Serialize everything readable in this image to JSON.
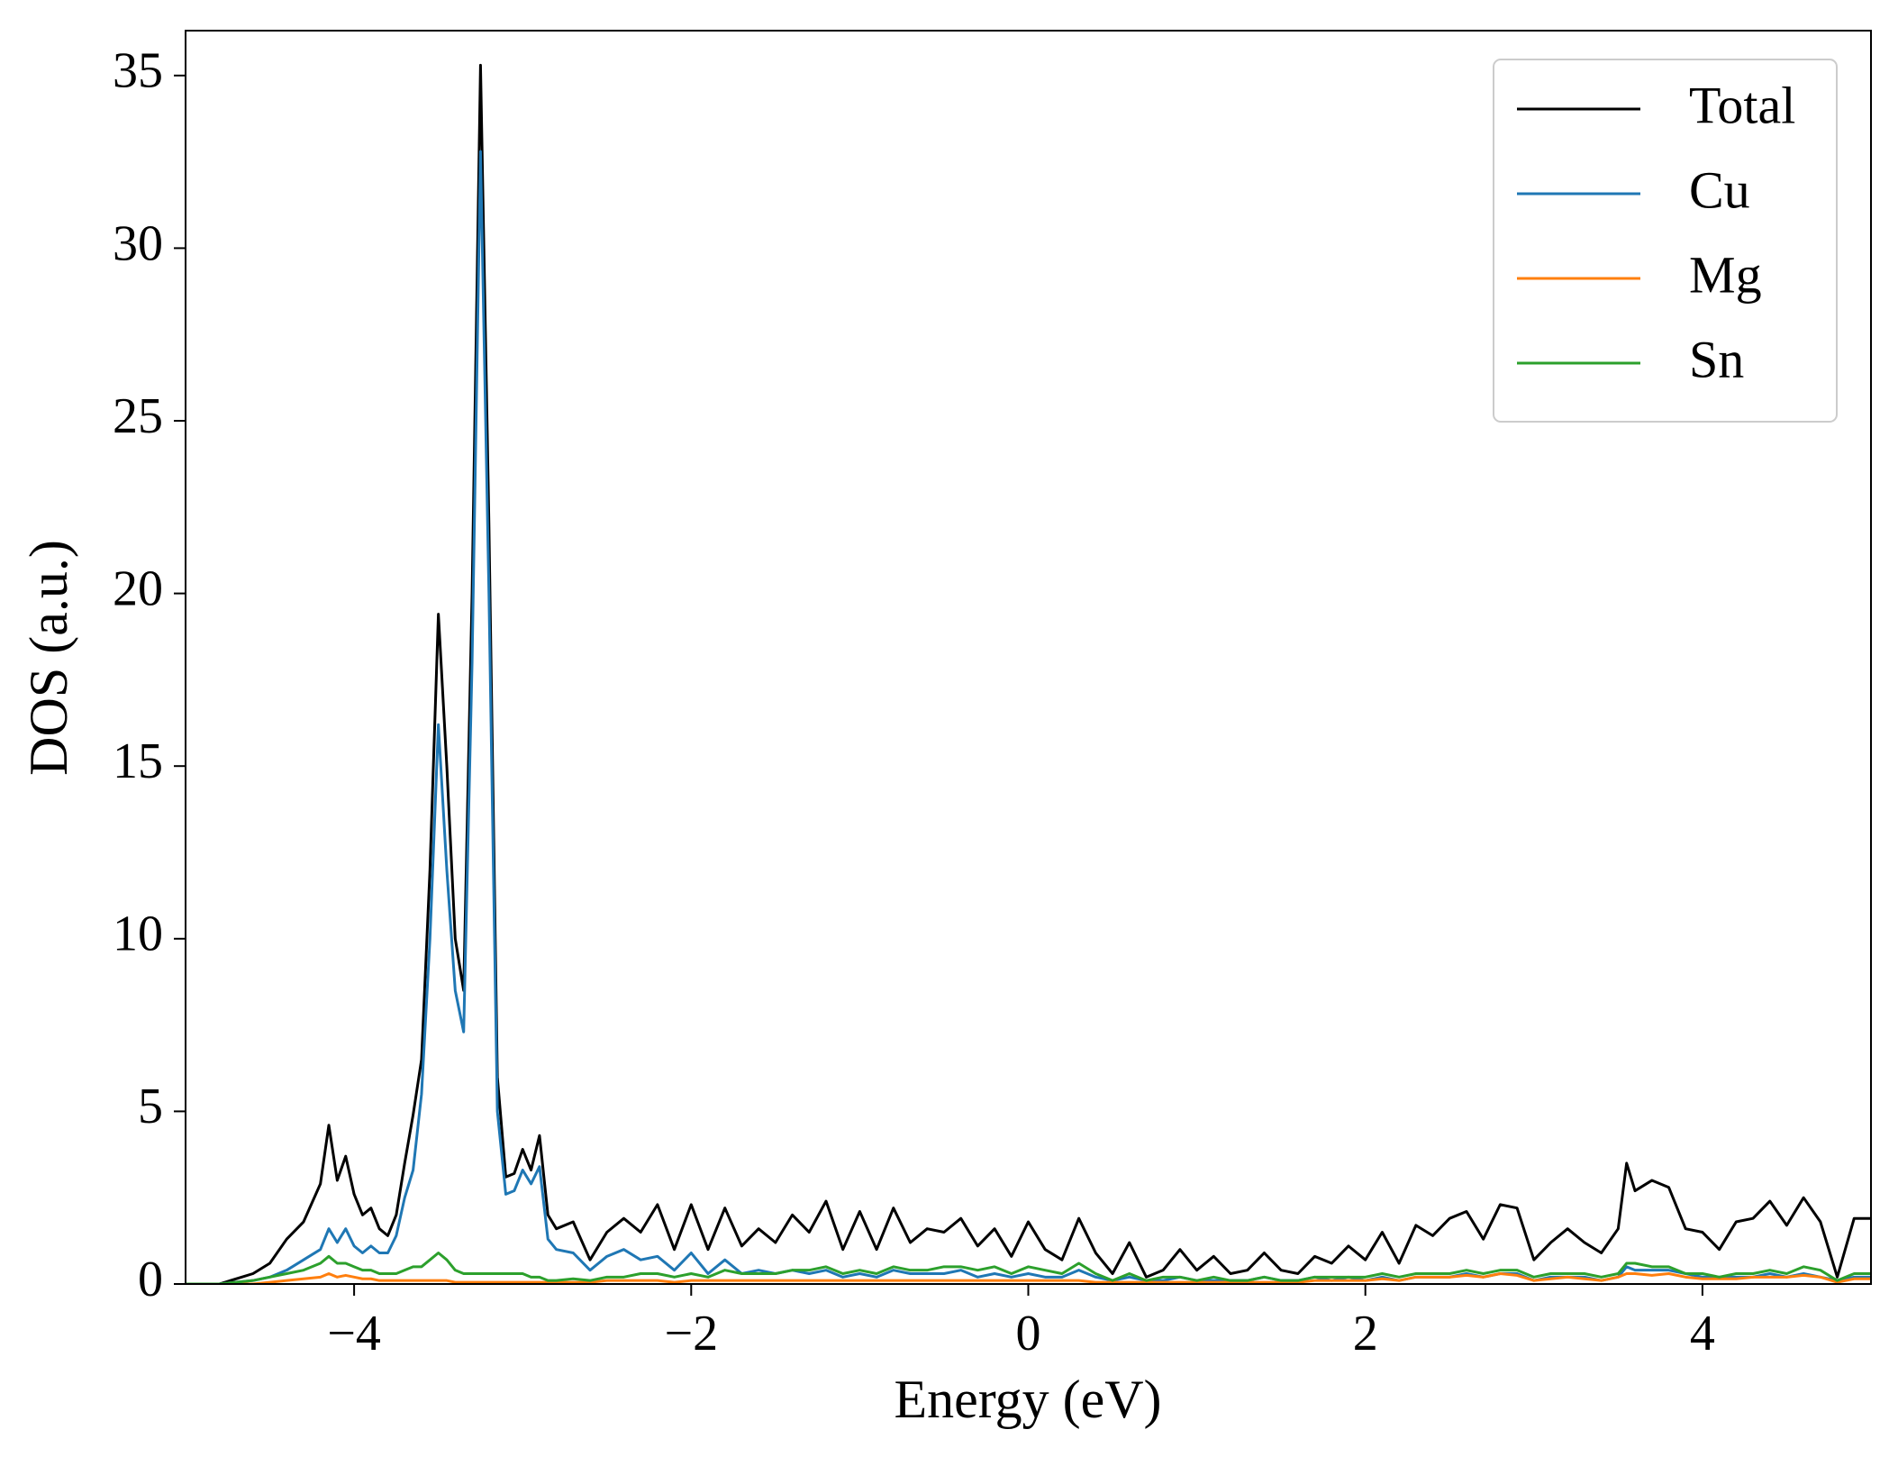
{
  "chart_data": {
    "type": "line",
    "x_label": "Energy (eV)",
    "y_label": "DOS (a.u.)",
    "xlim": [
      -5,
      5
    ],
    "ylim": [
      0,
      36.3
    ],
    "xticks": [
      {
        "value": -4,
        "label": "−4"
      },
      {
        "value": -2,
        "label": "−2"
      },
      0,
      2,
      4
    ],
    "yticks": [
      0,
      5,
      10,
      15,
      20,
      25,
      30,
      35
    ],
    "legend": "upper right",
    "grid": false,
    "x": [
      -5.0,
      -4.8,
      -4.6,
      -4.5,
      -4.4,
      -4.3,
      -4.2,
      -4.15,
      -4.1,
      -4.05,
      -4.0,
      -3.95,
      -3.9,
      -3.85,
      -3.8,
      -3.75,
      -3.7,
      -3.65,
      -3.6,
      -3.55,
      -3.5,
      -3.45,
      -3.4,
      -3.35,
      -3.3,
      -3.25,
      -3.2,
      -3.15,
      -3.1,
      -3.05,
      -3.0,
      -2.95,
      -2.9,
      -2.85,
      -2.8,
      -2.7,
      -2.6,
      -2.5,
      -2.4,
      -2.3,
      -2.2,
      -2.1,
      -2.0,
      -1.9,
      -1.8,
      -1.7,
      -1.6,
      -1.5,
      -1.4,
      -1.3,
      -1.2,
      -1.1,
      -1.0,
      -0.9,
      -0.8,
      -0.7,
      -0.6,
      -0.5,
      -0.4,
      -0.3,
      -0.2,
      -0.1,
      0,
      0.1,
      0.2,
      0.3,
      0.4,
      0.5,
      0.6,
      0.7,
      0.8,
      0.9,
      1.0,
      1.1,
      1.2,
      1.3,
      1.4,
      1.5,
      1.6,
      1.7,
      1.8,
      1.9,
      2.0,
      2.1,
      2.2,
      2.3,
      2.4,
      2.5,
      2.6,
      2.7,
      2.8,
      2.9,
      3.0,
      3.1,
      3.2,
      3.3,
      3.4,
      3.5,
      3.55,
      3.6,
      3.7,
      3.8,
      3.9,
      4.0,
      4.1,
      4.2,
      4.3,
      4.4,
      4.5,
      4.6,
      4.7,
      4.8,
      4.9,
      5.0
    ],
    "series": [
      {
        "name": "Total",
        "color": "#000000",
        "values": [
          0,
          0,
          0.3,
          0.6,
          1.3,
          1.8,
          2.9,
          4.6,
          3.0,
          3.7,
          2.6,
          2.0,
          2.2,
          1.6,
          1.4,
          2.0,
          3.5,
          4.9,
          6.5,
          12,
          19.4,
          15,
          10,
          8.5,
          20,
          35.3,
          22,
          6,
          3.1,
          3.2,
          3.9,
          3.3,
          4.3,
          2.0,
          1.6,
          1.8,
          0.7,
          1.5,
          1.9,
          1.5,
          2.3,
          1.0,
          2.3,
          1.0,
          2.2,
          1.1,
          1.6,
          1.2,
          2.0,
          1.5,
          2.4,
          1.0,
          2.1,
          1.0,
          2.2,
          1.2,
          1.6,
          1.5,
          1.9,
          1.1,
          1.6,
          0.8,
          1.8,
          1.0,
          0.7,
          1.9,
          0.9,
          0.3,
          1.2,
          0.2,
          0.4,
          1.0,
          0.4,
          0.8,
          0.3,
          0.4,
          0.9,
          0.4,
          0.3,
          0.8,
          0.6,
          1.1,
          0.7,
          1.5,
          0.6,
          1.7,
          1.4,
          1.9,
          2.1,
          1.3,
          2.3,
          2.2,
          0.7,
          1.2,
          1.6,
          1.2,
          0.9,
          1.6,
          3.5,
          2.7,
          3.0,
          2.8,
          1.6,
          1.5,
          1.0,
          1.8,
          1.9,
          2.4,
          1.7,
          2.5,
          1.8,
          0.2,
          1.9,
          1.9
        ]
      },
      {
        "name": "Cu",
        "color": "#1f77b4",
        "values": [
          0,
          0,
          0.1,
          0.2,
          0.4,
          0.7,
          1.0,
          1.6,
          1.2,
          1.6,
          1.1,
          0.9,
          1.1,
          0.9,
          0.9,
          1.4,
          2.5,
          3.3,
          5.5,
          10,
          16.2,
          12,
          8.5,
          7.3,
          18,
          32.8,
          20,
          5,
          2.6,
          2.7,
          3.3,
          2.9,
          3.4,
          1.3,
          1.0,
          0.9,
          0.4,
          0.8,
          1.0,
          0.7,
          0.8,
          0.4,
          0.9,
          0.3,
          0.7,
          0.3,
          0.4,
          0.3,
          0.4,
          0.3,
          0.4,
          0.2,
          0.3,
          0.2,
          0.4,
          0.3,
          0.3,
          0.3,
          0.4,
          0.2,
          0.3,
          0.2,
          0.3,
          0.2,
          0.2,
          0.4,
          0.2,
          0.1,
          0.2,
          0.1,
          0.1,
          0.2,
          0.1,
          0.1,
          0.1,
          0.1,
          0.2,
          0.1,
          0.1,
          0.2,
          0.1,
          0.2,
          0.1,
          0.2,
          0.1,
          0.2,
          0.2,
          0.2,
          0.3,
          0.2,
          0.3,
          0.3,
          0.1,
          0.2,
          0.2,
          0.2,
          0.1,
          0.2,
          0.5,
          0.4,
          0.4,
          0.4,
          0.3,
          0.2,
          0.2,
          0.2,
          0.2,
          0.3,
          0.2,
          0.3,
          0.2,
          0.1,
          0.2,
          0.2
        ]
      },
      {
        "name": "Mg",
        "color": "#ff7f0e",
        "values": [
          0,
          0,
          0,
          0.05,
          0.1,
          0.15,
          0.2,
          0.3,
          0.2,
          0.25,
          0.2,
          0.15,
          0.15,
          0.1,
          0.1,
          0.1,
          0.1,
          0.1,
          0.1,
          0.1,
          0.1,
          0.1,
          0.05,
          0.05,
          0.05,
          0.05,
          0.05,
          0.05,
          0.05,
          0.05,
          0.05,
          0.05,
          0.05,
          0.05,
          0.05,
          0.05,
          0.05,
          0.1,
          0.1,
          0.1,
          0.1,
          0.05,
          0.1,
          0.1,
          0.1,
          0.1,
          0.1,
          0.1,
          0.1,
          0.1,
          0.1,
          0.1,
          0.1,
          0.1,
          0.1,
          0.1,
          0.1,
          0.1,
          0.1,
          0.1,
          0.1,
          0.1,
          0.1,
          0.1,
          0.1,
          0.1,
          0.05,
          0.05,
          0.05,
          0.05,
          0.05,
          0.05,
          0.05,
          0.05,
          0.05,
          0.05,
          0.05,
          0.05,
          0.05,
          0.1,
          0.1,
          0.1,
          0.1,
          0.15,
          0.1,
          0.2,
          0.2,
          0.2,
          0.25,
          0.2,
          0.3,
          0.25,
          0.1,
          0.15,
          0.2,
          0.15,
          0.1,
          0.2,
          0.3,
          0.3,
          0.25,
          0.3,
          0.2,
          0.15,
          0.15,
          0.15,
          0.2,
          0.2,
          0.2,
          0.25,
          0.2,
          0.05,
          0.15,
          0.15
        ]
      },
      {
        "name": "Sn",
        "color": "#2ca02c",
        "values": [
          0,
          0,
          0.1,
          0.2,
          0.3,
          0.4,
          0.6,
          0.8,
          0.6,
          0.6,
          0.5,
          0.4,
          0.4,
          0.3,
          0.3,
          0.3,
          0.4,
          0.5,
          0.5,
          0.7,
          0.9,
          0.7,
          0.4,
          0.3,
          0.3,
          0.3,
          0.3,
          0.3,
          0.3,
          0.3,
          0.3,
          0.2,
          0.2,
          0.1,
          0.1,
          0.15,
          0.1,
          0.2,
          0.2,
          0.3,
          0.3,
          0.2,
          0.3,
          0.2,
          0.4,
          0.3,
          0.3,
          0.3,
          0.4,
          0.4,
          0.5,
          0.3,
          0.4,
          0.3,
          0.5,
          0.4,
          0.4,
          0.5,
          0.5,
          0.4,
          0.5,
          0.3,
          0.5,
          0.4,
          0.3,
          0.6,
          0.3,
          0.1,
          0.3,
          0.1,
          0.2,
          0.2,
          0.1,
          0.2,
          0.1,
          0.1,
          0.2,
          0.1,
          0.1,
          0.2,
          0.2,
          0.2,
          0.2,
          0.3,
          0.2,
          0.3,
          0.3,
          0.3,
          0.4,
          0.3,
          0.4,
          0.4,
          0.2,
          0.3,
          0.3,
          0.3,
          0.2,
          0.3,
          0.6,
          0.6,
          0.5,
          0.5,
          0.3,
          0.3,
          0.2,
          0.3,
          0.3,
          0.4,
          0.3,
          0.5,
          0.4,
          0.1,
          0.3,
          0.3
        ]
      }
    ]
  }
}
